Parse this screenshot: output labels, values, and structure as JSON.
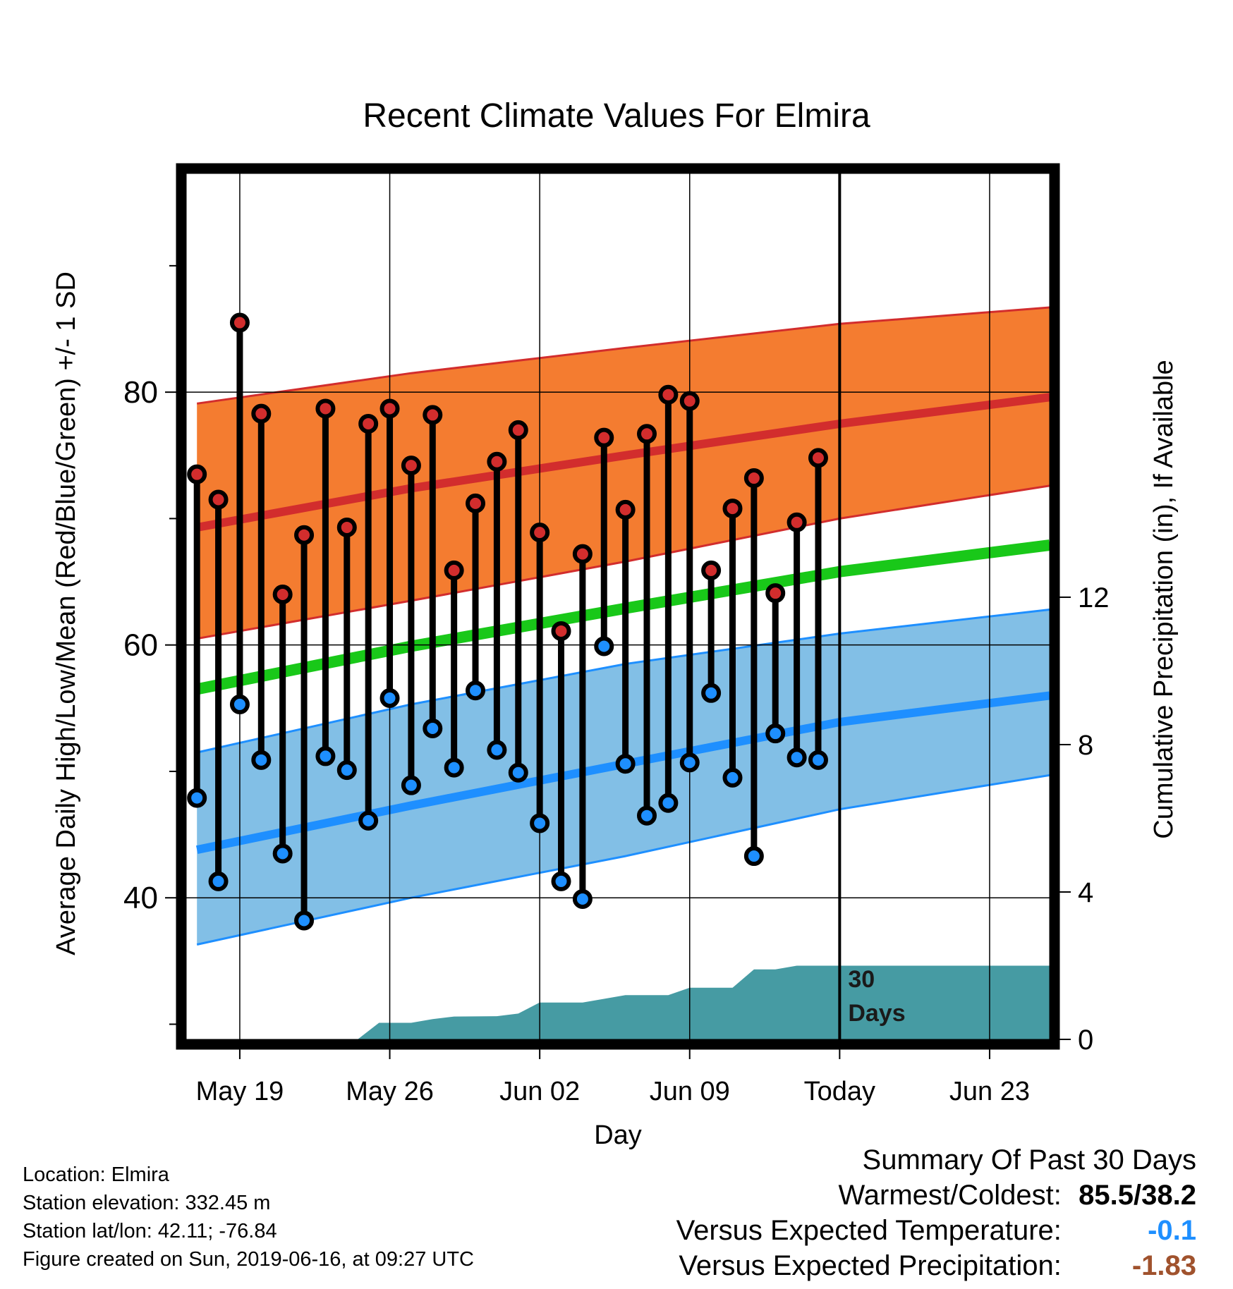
{
  "chart_data": {
    "type": "line",
    "title": "Recent Climate Values For Elmira",
    "xlabel": "Day",
    "ylabel_left": "Average Daily High/Low/Mean (Red/Blue/Green) +/- 1 SD",
    "ylabel_right": "Cumulative Precipitation (in), If Available",
    "x_tick_labels": [
      "May 19",
      "May 26",
      "Jun 02",
      "Jun 09",
      "Today",
      "Jun 23"
    ],
    "x_tick_days": [
      2,
      9,
      16,
      23,
      30,
      37
    ],
    "xlim_days": [
      -0.5,
      39.8
    ],
    "y_left_ticks": [
      40,
      60,
      80
    ],
    "y_left_minor_ticks": [
      30,
      50,
      70,
      90
    ],
    "ylim_left": [
      28.8,
      97.3
    ],
    "y_right_ticks": [
      0,
      4,
      8,
      12
    ],
    "ylim_right": [
      0,
      23.5
    ],
    "grid": true,
    "today_marker": {
      "day": 30,
      "label_line1": "30",
      "label_line2": "Days"
    },
    "normals": {
      "days": [
        0,
        10,
        20,
        30,
        39.8
      ],
      "high_mean": [
        69.3,
        72.4,
        75.0,
        77.5,
        79.6
      ],
      "high_upper": [
        79.1,
        81.5,
        83.5,
        85.4,
        86.7
      ],
      "high_lower": [
        60.5,
        63.5,
        66.6,
        70.0,
        72.6
      ],
      "low_mean": [
        43.8,
        47.3,
        50.6,
        53.9,
        56.0
      ],
      "low_upper": [
        51.5,
        55.3,
        58.5,
        60.9,
        62.8
      ],
      "low_lower": [
        36.3,
        40.0,
        43.3,
        47.0,
        49.7
      ],
      "daily_mean": [
        56.5,
        59.9,
        62.9,
        65.8,
        67.9
      ]
    },
    "series": [
      {
        "name": "High",
        "days": [
          0,
          1,
          2,
          3,
          4,
          5,
          6,
          7,
          8,
          9,
          10,
          11,
          12,
          13,
          14,
          15,
          16,
          17,
          18,
          19,
          20,
          21,
          22,
          23,
          24,
          25,
          26,
          27,
          28,
          29
        ],
        "values": [
          73.5,
          71.5,
          85.5,
          78.3,
          64.0,
          68.7,
          78.7,
          69.3,
          77.5,
          78.7,
          74.2,
          78.2,
          65.9,
          71.2,
          74.5,
          77.0,
          68.9,
          61.1,
          67.2,
          76.4,
          70.7,
          76.7,
          79.8,
          79.3,
          65.9,
          70.8,
          73.2,
          64.1,
          69.7,
          74.8
        ]
      },
      {
        "name": "Low",
        "days": [
          0,
          1,
          2,
          3,
          4,
          5,
          6,
          7,
          8,
          9,
          10,
          11,
          12,
          13,
          14,
          15,
          16,
          17,
          18,
          19,
          20,
          21,
          22,
          23,
          24,
          25,
          26,
          27,
          28,
          29
        ],
        "values": [
          47.9,
          41.3,
          55.3,
          50.9,
          43.5,
          38.2,
          51.2,
          50.1,
          46.1,
          55.8,
          48.9,
          53.4,
          50.3,
          56.4,
          51.7,
          49.9,
          45.9,
          41.3,
          39.9,
          59.9,
          50.6,
          46.5,
          47.5,
          50.7,
          56.2,
          49.5,
          43.3,
          53.0,
          51.1,
          50.9
        ]
      }
    ],
    "precipitation": {
      "days": [
        -0.5,
        7.5,
        8.5,
        10,
        11,
        12,
        14,
        15,
        16,
        17,
        18,
        19,
        20,
        21,
        22,
        23,
        24,
        25,
        26,
        27,
        28,
        29,
        30,
        39.8
      ],
      "cumulative": [
        0,
        0,
        0.45,
        0.45,
        0.55,
        0.62,
        0.63,
        0.7,
        1.0,
        1.0,
        1.0,
        1.1,
        1.2,
        1.2,
        1.2,
        1.4,
        1.4,
        1.4,
        1.9,
        1.9,
        2.0,
        2.0,
        2.0,
        2.0
      ]
    },
    "colors": {
      "high_band": "#f47c30",
      "high_line": "#d22d2d",
      "low_band": "#82bfe6",
      "low_line": "#1e8fff",
      "mean_line": "#19c819",
      "high_marker": "#d22d2d",
      "low_marker": "#1e8fff",
      "precip_fill": "#469ba3"
    }
  },
  "info": {
    "location": "Location: Elmira",
    "elevation": "Station elevation: 332.45 m",
    "latlon": "Station lat/lon: 42.11; -76.84",
    "created": "Figure created on Sun, 2019-06-16, at 09:27 UTC"
  },
  "summary": {
    "title": "Summary Of Past 30 Days",
    "warmest_coldest_label": "Warmest/Coldest:",
    "warmest_coldest_value": "85.5/38.2",
    "temp_label": "Versus Expected Temperature:",
    "temp_value": "-0.1",
    "precip_label": "Versus Expected Precipitation:",
    "precip_value": "-1.83"
  }
}
